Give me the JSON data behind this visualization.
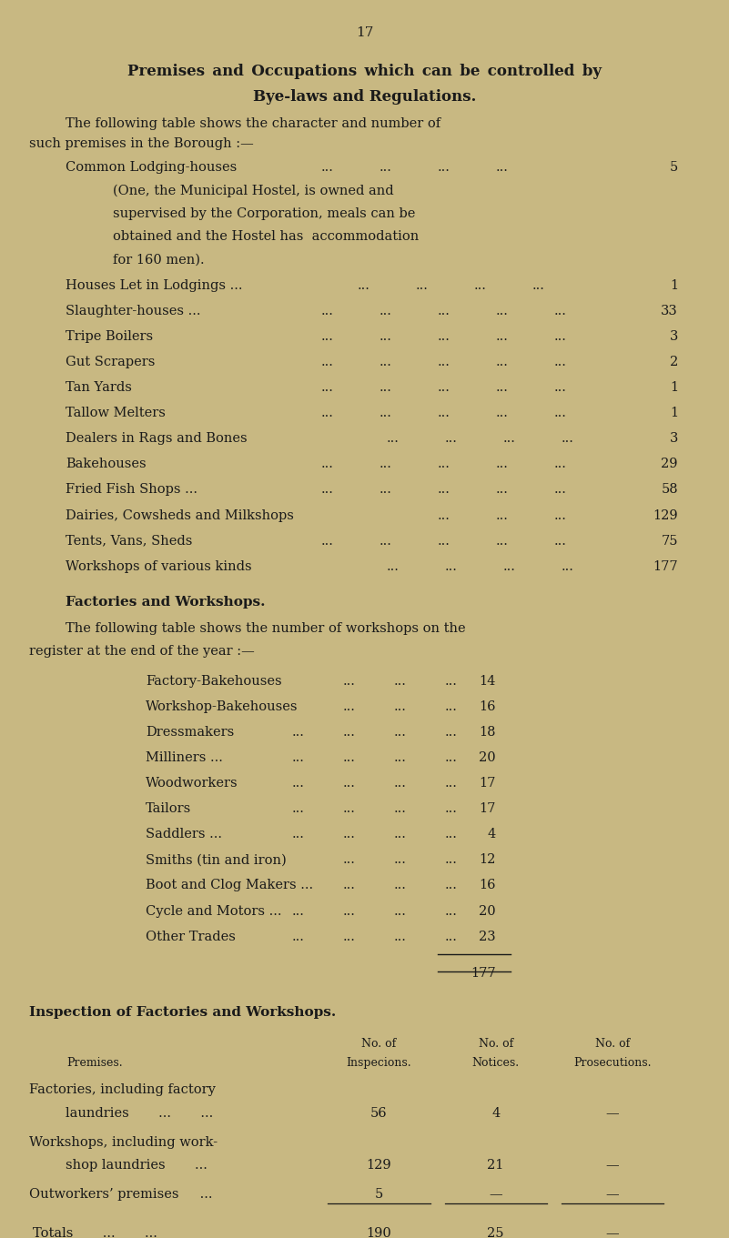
{
  "background_color": "#c8b882",
  "text_color": "#1a1a1a",
  "page_number": "17",
  "title_line1": "Premises and Occupations which can be controlled by",
  "title_line2": "Bye-laws and Regulations.",
  "intro_text": "The following table shows the character and number of such premises in the Borough :—",
  "premises_list": [
    [
      "Common Lodging-houses",
      "...",
      "...",
      "...",
      "...",
      "5"
    ],
    [
      "(One, the Municipal Hostel, is owned and",
      "",
      "",
      "",
      "",
      ""
    ],
    [
      "supervised by the Corporation, meals can be",
      "",
      "",
      "",
      "",
      ""
    ],
    [
      "obtained and the Hostel has accommodation",
      "",
      "",
      "",
      "",
      ""
    ],
    [
      "for 160 men).",
      "",
      "",
      "",
      "",
      ""
    ],
    [
      "Houses Let in Lodgings ...",
      "...",
      "...",
      "...",
      "...",
      "1"
    ],
    [
      "Slaughter-houses ...",
      "...",
      "...",
      "...",
      "...",
      "33"
    ],
    [
      "Tripe Boilers",
      "...",
      "...",
      "...",
      "...",
      "3"
    ],
    [
      "Gut Scrapers",
      "...",
      "...",
      "...",
      "...",
      "2"
    ],
    [
      "Tan Yards",
      "...",
      "...",
      "...",
      "...",
      "1"
    ],
    [
      "Tallow Melters",
      "...",
      "...",
      "...",
      "...",
      "1"
    ],
    [
      "Dealers in Rags and Bones",
      "...",
      "...",
      "...",
      "...",
      "3"
    ],
    [
      "Bakehouses",
      "...",
      "...",
      "...",
      "...",
      "29"
    ],
    [
      "Fried Fish Shops ...",
      "...",
      "...",
      "...",
      "...",
      "58"
    ],
    [
      "Dairies, Cowsheds and Milkshops",
      "...",
      "...",
      "...",
      "129"
    ],
    [
      "Tents, Vans, Sheds",
      "...",
      "...",
      "...",
      "...",
      "75"
    ],
    [
      "Workshops of various kinds",
      "...",
      "...",
      "...",
      "...",
      "177"
    ]
  ],
  "factories_title": "Factories and Workshops.",
  "factories_intro": "The following table shows the number of workshops on the\nregister at the end of the year :—",
  "workshops": [
    [
      "Factory-Bakehouses",
      "...",
      "...",
      "...",
      "14"
    ],
    [
      "Workshop-Bakehouses",
      "...",
      "...",
      "...",
      "16"
    ],
    [
      "Dressmakers",
      "...",
      "...",
      "...",
      "18"
    ],
    [
      "Milliners ...",
      "...",
      "...",
      "...",
      "20"
    ],
    [
      "Woodworkers",
      "...",
      "...",
      "...",
      "17"
    ],
    [
      "Tailors",
      "...",
      "...",
      "...",
      "17"
    ],
    [
      "Saddlers ...",
      "...",
      "...",
      "...",
      "4"
    ],
    [
      "Smiths (tin and iron)",
      "...",
      "...",
      "...",
      "12"
    ],
    [
      "Boot and Clog Makers ...",
      "...",
      "...",
      "...",
      "16"
    ],
    [
      "Cycle and Motors ...",
      "...",
      "...",
      "...",
      "20"
    ],
    [
      "Other Trades",
      "...",
      "...",
      "‘...",
      "...",
      "23"
    ]
  ],
  "workshops_total": "177",
  "inspection_title": "Inspection of Factories and Workshops.",
  "col_headers": [
    "Premises.",
    "No. of\nInspecions.",
    "No. of\nNotices.",
    "No. of\nProsecutions."
  ],
  "inspection_rows": [
    [
      "Factories, including factory\n    laundries     ...    ...",
      "56",
      "4",
      "—"
    ],
    [
      "Workshops, including work-\n    shop laundries     ...",
      "129",
      "21",
      "—"
    ],
    [
      "Outworkers’ premises     ...",
      "5",
      "—",
      "—"
    ]
  ],
  "totals_row": [
    "Totals     ...     ...",
    "190",
    "25",
    "—"
  ]
}
